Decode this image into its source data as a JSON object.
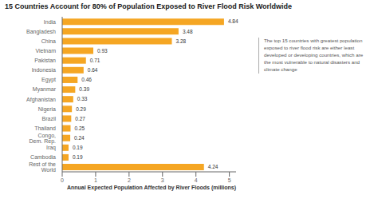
{
  "chart_data": {
    "type": "bar",
    "orientation": "horizontal",
    "title": "15 Countries Account for 80% of Population Exposed to River Flood Risk Worldwide",
    "categories": [
      "India",
      "Bangladesh",
      "China",
      "Vietnam",
      "Pakistan",
      "Indonesia",
      "Egypt",
      "Myanmar",
      "Afghanistan",
      "Nigeria",
      "Brazil",
      "Thailand",
      "Congo, Dem. Rep.",
      "Iraq",
      "Cambodia",
      "Rest of the World"
    ],
    "values": [
      4.84,
      3.48,
      3.28,
      0.93,
      0.71,
      0.64,
      0.46,
      0.39,
      0.33,
      0.29,
      0.27,
      0.25,
      0.24,
      0.19,
      0.19,
      4.24
    ],
    "color": "#F5A623",
    "xlabel": "Annual Expected Population Affected by River Floods (millions)",
    "annotation": "The top 15 countries with greatest population\nexposed to river flood risk are either least\ndeveloped or developing countries, which are\nthe most vulnerable to natural disasters and\nclimate change",
    "xlim": [
      0,
      5.2
    ],
    "xticks": [
      0,
      1,
      2,
      3,
      4,
      5
    ],
    "grid": false,
    "data_labels": true
  }
}
